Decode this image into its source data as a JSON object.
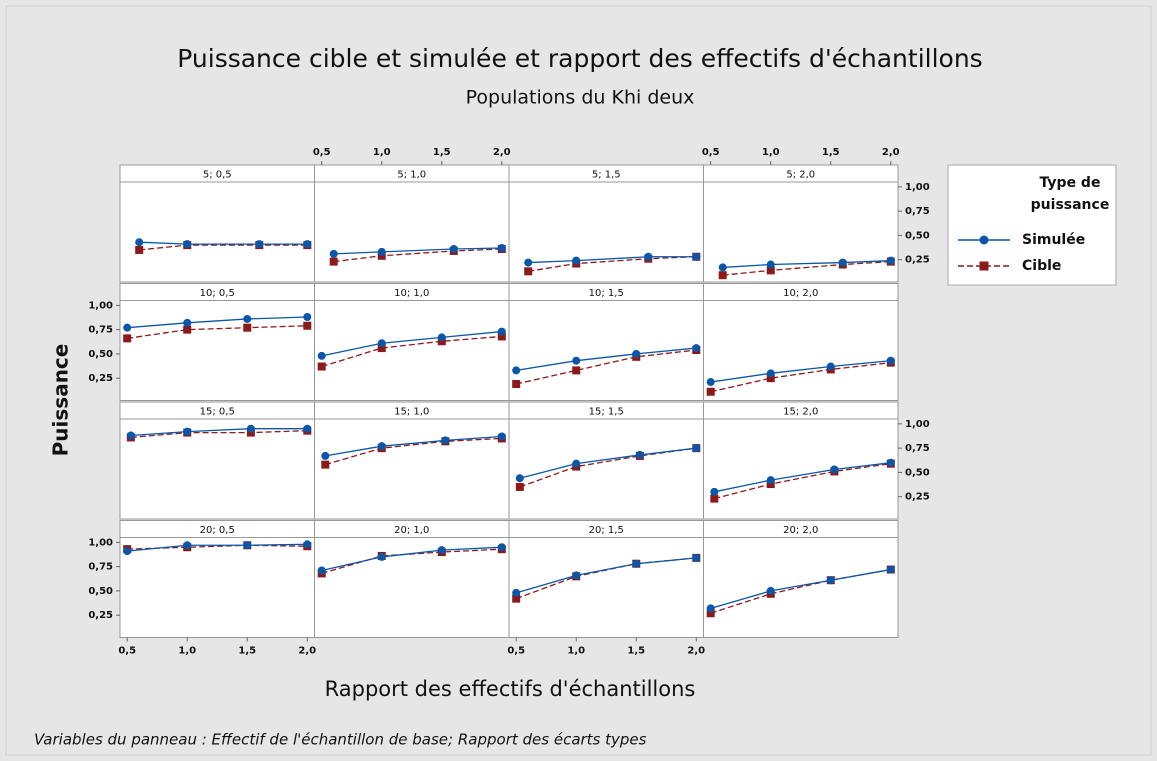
{
  "chart_data": {
    "type": "panel-line",
    "title": "Puissance cible et simulée et rapport des effectifs d'échantillons",
    "subtitle": "Populations du Khi deux",
    "xlabel": "Rapport des effectifs d'échantillons",
    "ylabel": "Puissance",
    "footnote": "Variables du panneau : Effectif de l'échantillon de base; Rapport des écarts types",
    "legend_title": "Type de puissance",
    "series": [
      {
        "name": "Simulée",
        "color": "#0a56a8",
        "marker": "circle"
      },
      {
        "name": "Cible",
        "color": "#8c1a1a",
        "marker": "square",
        "dash": true
      }
    ],
    "xlim": [
      0.44,
      2.06
    ],
    "xticks": [
      {
        "value": 0.5,
        "label": "0,5"
      },
      {
        "value": 1.0,
        "label": "1,0"
      },
      {
        "value": 1.5,
        "label": "1,5"
      },
      {
        "value": 2.0,
        "label": "2,0"
      }
    ],
    "ylim": [
      0.02,
      1.05
    ],
    "yticks": [
      {
        "value": 1.0,
        "label": "1,00"
      },
      {
        "value": 0.75,
        "label": "0,75"
      },
      {
        "value": 0.5,
        "label": "0,50"
      },
      {
        "value": 0.25,
        "label": "0,25"
      }
    ],
    "panels": [
      {
        "title": "5; 0,5",
        "x": [
          0.6,
          1.0,
          1.6,
          2.0
        ],
        "series": [
          {
            "values": [
              0.43,
              0.41,
              0.41,
              0.41
            ]
          },
          {
            "values": [
              0.35,
              0.4,
              0.4,
              0.4
            ]
          }
        ]
      },
      {
        "title": "5; 1,0",
        "x": [
          0.6,
          1.0,
          1.6,
          2.0
        ],
        "series": [
          {
            "values": [
              0.31,
              0.33,
              0.36,
              0.37
            ]
          },
          {
            "values": [
              0.23,
              0.29,
              0.34,
              0.36
            ]
          }
        ]
      },
      {
        "title": "5; 1,5",
        "x": [
          0.6,
          1.0,
          1.6,
          2.0
        ],
        "series": [
          {
            "values": [
              0.22,
              0.24,
              0.28,
              0.28
            ]
          },
          {
            "values": [
              0.13,
              0.21,
              0.26,
              0.28
            ]
          }
        ]
      },
      {
        "title": "5; 2,0",
        "x": [
          0.6,
          1.0,
          1.6,
          2.0
        ],
        "series": [
          {
            "values": [
              0.17,
              0.2,
              0.22,
              0.24
            ]
          },
          {
            "values": [
              0.09,
              0.14,
              0.2,
              0.23
            ]
          }
        ]
      },
      {
        "title": "10; 0,5",
        "x": [
          0.5,
          1.0,
          1.5,
          2.0
        ],
        "series": [
          {
            "values": [
              0.77,
              0.82,
              0.86,
              0.88
            ]
          },
          {
            "values": [
              0.66,
              0.75,
              0.77,
              0.79
            ]
          }
        ]
      },
      {
        "title": "10; 1,0",
        "x": [
          0.5,
          1.0,
          1.5,
          2.0
        ],
        "series": [
          {
            "values": [
              0.48,
              0.61,
              0.67,
              0.73
            ]
          },
          {
            "values": [
              0.37,
              0.56,
              0.63,
              0.68
            ]
          }
        ]
      },
      {
        "title": "10; 1,5",
        "x": [
          0.5,
          1.0,
          1.5,
          2.0
        ],
        "series": [
          {
            "values": [
              0.33,
              0.43,
              0.5,
              0.56
            ]
          },
          {
            "values": [
              0.19,
              0.33,
              0.47,
              0.54
            ]
          }
        ]
      },
      {
        "title": "10; 2,0",
        "x": [
          0.5,
          1.0,
          1.5,
          2.0
        ],
        "series": [
          {
            "values": [
              0.21,
              0.3,
              0.37,
              0.43
            ]
          },
          {
            "values": [
              0.11,
              0.25,
              0.34,
              0.41
            ]
          }
        ]
      },
      {
        "title": "15; 0,5",
        "x": [
          0.53,
          1.0,
          1.53,
          2.0
        ],
        "series": [
          {
            "values": [
              0.88,
              0.92,
              0.95,
              0.95
            ]
          },
          {
            "values": [
              0.86,
              0.91,
              0.91,
              0.93
            ]
          }
        ]
      },
      {
        "title": "15; 1,0",
        "x": [
          0.53,
          1.0,
          1.53,
          2.0
        ],
        "series": [
          {
            "values": [
              0.67,
              0.77,
              0.83,
              0.87
            ]
          },
          {
            "values": [
              0.58,
              0.75,
              0.82,
              0.85
            ]
          }
        ]
      },
      {
        "title": "15; 1,5",
        "x": [
          0.53,
          1.0,
          1.53,
          2.0
        ],
        "series": [
          {
            "values": [
              0.44,
              0.59,
              0.68,
              0.75
            ]
          },
          {
            "values": [
              0.35,
              0.56,
              0.67,
              0.75
            ]
          }
        ]
      },
      {
        "title": "15; 2,0",
        "x": [
          0.53,
          1.0,
          1.53,
          2.0
        ],
        "series": [
          {
            "values": [
              0.3,
              0.42,
              0.53,
              0.6
            ]
          },
          {
            "values": [
              0.23,
              0.38,
              0.51,
              0.59
            ]
          }
        ]
      },
      {
        "title": "20; 0,5",
        "x": [
          0.5,
          1.0,
          1.5,
          2.0
        ],
        "series": [
          {
            "values": [
              0.91,
              0.97,
              0.97,
              0.98
            ]
          },
          {
            "values": [
              0.93,
              0.95,
              0.97,
              0.96
            ]
          }
        ]
      },
      {
        "title": "20; 1,0",
        "x": [
          0.5,
          1.0,
          1.5,
          2.0
        ],
        "series": [
          {
            "values": [
              0.71,
              0.85,
              0.92,
              0.95
            ]
          },
          {
            "values": [
              0.68,
              0.86,
              0.9,
              0.93
            ]
          }
        ]
      },
      {
        "title": "20; 1,5",
        "x": [
          0.5,
          1.0,
          1.5,
          2.0
        ],
        "series": [
          {
            "values": [
              0.48,
              0.66,
              0.78,
              0.84
            ]
          },
          {
            "values": [
              0.42,
              0.65,
              0.78,
              0.84
            ]
          }
        ]
      },
      {
        "title": "20; 2,0",
        "x": [
          0.5,
          1.0,
          1.5,
          2.0
        ],
        "series": [
          {
            "values": [
              0.32,
              0.5,
              0.61,
              0.72
            ]
          },
          {
            "values": [
              0.27,
              0.47,
              0.61,
              0.72
            ]
          }
        ]
      }
    ]
  }
}
